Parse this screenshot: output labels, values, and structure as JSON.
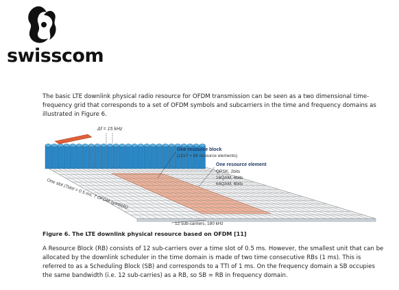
{
  "logo": {
    "text": "swisscom"
  },
  "intro": "The basic LTE downlink physical radio resource for OFDM transmission can be seen as a two dimensional time-frequency grid that corresponds to a set of OFDM symbols and subcarriers in the time and frequency domains as illustrated in Figure 6.",
  "figure": {
    "spacing": "Δf = 15 kHz",
    "block_title": "One resource block",
    "block_detail": "(12x7 = 84 resource elements)",
    "element_title": "One resource element",
    "modulations": [
      "QPSK, 2bits",
      "16QAM, 4bits",
      "64QAM, 6bits"
    ],
    "slot": "One slot (Tslot = 0.5 ms, 7 OFDM symbols)",
    "subcarriers": "12 sub-carriers, 180 kHz",
    "caption": "Figure 6. The LTE downlink physical resource based on OFDM [11]"
  },
  "body": "A Resource Block (RB) consists of 12 sub-carriers over a time slot of 0.5 ms. However, the smallest unit that can be allocated by the downlink scheduler in the time domain is made of two time consecutive RBs (1 ms). This is referred to as a Scheduling Block (SB) and corresponds to a TTI of 1 ms. On the frequency domain a SB occupies the same bandwidth (i.e. 12 sub-carries) as a RB, so SB = RB in frequency domain."
}
